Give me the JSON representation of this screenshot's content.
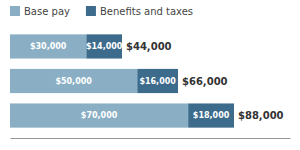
{
  "chart_data": {
    "type": "bar",
    "orientation": "horizontal",
    "stacked": true,
    "categories": [
      null,
      null,
      null
    ],
    "series": [
      {
        "name": "Base pay",
        "color": "#8aafc4",
        "values": [
          30000,
          50000,
          70000
        ],
        "value_labels": [
          "$30,000",
          "$50,000",
          "$70,000"
        ]
      },
      {
        "name": "Benefits and taxes",
        "color": "#3d6b8c",
        "values": [
          14000,
          16000,
          18000
        ],
        "value_labels": [
          "$14,000",
          "$16,000",
          "$18,000"
        ]
      }
    ],
    "totals": [
      44000,
      66000,
      88000
    ],
    "total_labels": [
      "$44,000",
      "$66,000",
      "$88,000"
    ],
    "xlim": [
      0,
      110000
    ],
    "data_labels": true,
    "tick_labels": false,
    "legend": "top"
  }
}
